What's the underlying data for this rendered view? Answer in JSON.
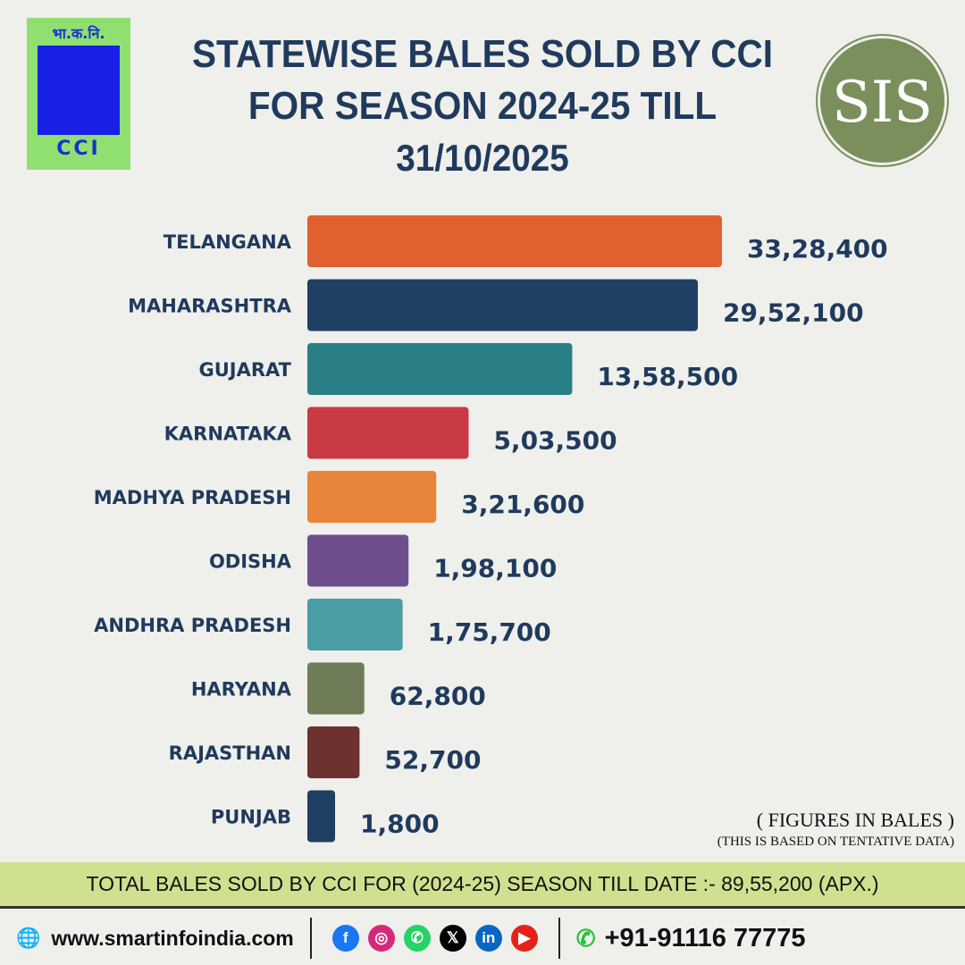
{
  "logos": {
    "cci_hindi": "भा.क.नि.",
    "cci": "CCI",
    "sis": "SIS"
  },
  "chart_data": {
    "type": "bar",
    "orientation": "horizontal",
    "title": "STATEWISE BALES SOLD BY CCI FOR SEASON 2024-25 TILL",
    "subtitle": "31/10/2025",
    "categories": [
      "TELANGANA",
      "MAHARASHTRA",
      "GUJARAT",
      "KARNATAKA",
      "MADHYA PRADESH",
      "ODISHA",
      "ANDHRA PRADESH",
      "HARYANA",
      "RAJASTHAN",
      "PUNJAB"
    ],
    "values": [
      3328400,
      2952100,
      1358500,
      503500,
      321600,
      198100,
      175700,
      62800,
      52700,
      1800
    ],
    "data_labels": [
      "33,28,400",
      "29,52,100",
      "13,58,500",
      "5,03,500",
      "3,21,600",
      "1,98,100",
      "1,75,700",
      "62,800",
      "52,700",
      "1,800"
    ],
    "colors": [
      "#e0612f",
      "#1f3f63",
      "#2a7f86",
      "#c93a44",
      "#e8843a",
      "#6e4f8e",
      "#4a9ca5",
      "#6e7d57",
      "#6b3230",
      "#1f3f63"
    ],
    "grid": false,
    "unit_note": "( FIGURES IN BALES )",
    "note": "(THIS IS BASED ON TENTATIVE DATA)"
  },
  "total": "TOTAL BALES SOLD BY CCI FOR (2024-25) SEASON TILL DATE :- 89,55,200 (APX.)",
  "footer": {
    "website": "www.smartinfoindia.com",
    "phone": "+91-91116 77775",
    "social": [
      {
        "icon": "facebook-icon",
        "glyph": "f",
        "color": "#1877f2"
      },
      {
        "icon": "instagram-icon",
        "glyph": "◎",
        "color": "#d6287a"
      },
      {
        "icon": "whatsapp-icon",
        "glyph": "✆",
        "color": "#25d366"
      },
      {
        "icon": "x-icon",
        "glyph": "𝕏",
        "color": "#000000"
      },
      {
        "icon": "linkedin-icon",
        "glyph": "in",
        "color": "#0a66c2"
      },
      {
        "icon": "youtube-icon",
        "glyph": "▶",
        "color": "#e62117"
      }
    ]
  }
}
